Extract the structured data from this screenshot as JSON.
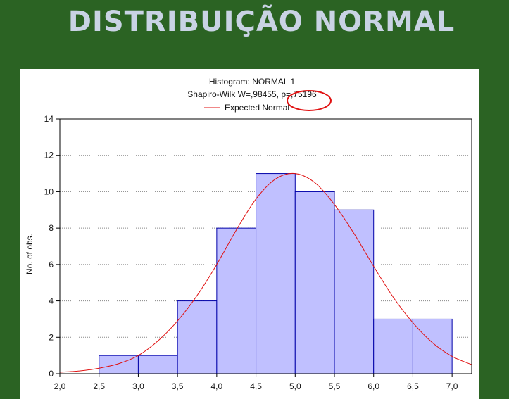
{
  "slide": {
    "title": "DISTRIBUIÇÃO NORMAL"
  },
  "chart_data": {
    "type": "bar",
    "title": "Histogram: NORMAL 1",
    "subtitle": "Shapiro-Wilk W=,98455, p=,75196",
    "legend": {
      "entries": [
        "Expected Normal"
      ],
      "placement": "top-center",
      "colors": [
        "#e01010"
      ]
    },
    "ylabel": "No. of obs.",
    "xlabel": "",
    "xlim": [
      2.0,
      7.25
    ],
    "ylim": [
      0,
      14
    ],
    "xticks": [
      2.0,
      2.5,
      3.0,
      3.5,
      4.0,
      4.5,
      5.0,
      5.5,
      6.0,
      6.5,
      7.0
    ],
    "xtick_labels": [
      "2,0",
      "2,5",
      "3,0",
      "3,5",
      "4,0",
      "4,5",
      "5,0",
      "5,5",
      "6,0",
      "6,5",
      "7,0"
    ],
    "yticks": [
      0,
      2,
      4,
      6,
      8,
      10,
      12,
      14
    ],
    "ytick_labels": [
      "0",
      "2",
      "4",
      "6",
      "8",
      "10",
      "12",
      "14"
    ],
    "bins": [
      {
        "from": 2.5,
        "to": 3.0,
        "count": 1
      },
      {
        "from": 3.0,
        "to": 3.5,
        "count": 1
      },
      {
        "from": 3.5,
        "to": 4.0,
        "count": 4
      },
      {
        "from": 4.0,
        "to": 4.5,
        "count": 8
      },
      {
        "from": 4.5,
        "to": 5.0,
        "count": 11
      },
      {
        "from": 5.0,
        "to": 5.5,
        "count": 10
      },
      {
        "from": 5.5,
        "to": 6.0,
        "count": 9
      },
      {
        "from": 6.0,
        "to": 6.5,
        "count": 3
      },
      {
        "from": 6.5,
        "to": 7.0,
        "count": 3
      }
    ],
    "expected_normal": {
      "x": [
        2.0,
        2.25,
        2.5,
        2.75,
        3.0,
        3.25,
        3.5,
        3.75,
        4.0,
        4.25,
        4.5,
        4.75,
        5.0,
        5.25,
        5.5,
        5.75,
        6.0,
        6.25,
        6.5,
        6.75,
        7.0,
        7.25
      ],
      "y": [
        0.08,
        0.15,
        0.3,
        0.55,
        1.0,
        1.8,
        2.9,
        4.3,
        6.0,
        7.9,
        9.6,
        10.7,
        11.0,
        10.5,
        9.3,
        7.7,
        5.9,
        4.2,
        2.8,
        1.7,
        0.95,
        0.5
      ]
    },
    "colors": {
      "bar_fill": "#c0c0ff",
      "bar_stroke": "#0000a8",
      "curve": "#e01010",
      "annotation": "#e01010"
    },
    "grid": true,
    "annotation": {
      "shape": "ellipse",
      "target": "p-value"
    }
  }
}
